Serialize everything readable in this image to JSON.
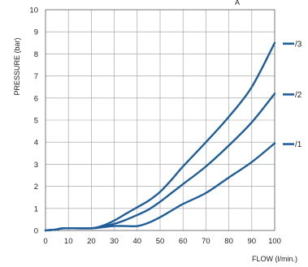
{
  "chart_data": {
    "type": "line",
    "title": "",
    "top_label": "A",
    "xlabel": "FLOW (l/min.)",
    "ylabel": "PRESSURE (bar)",
    "xlim": [
      0,
      100
    ],
    "ylim": [
      0,
      10
    ],
    "x_ticks": [
      "0",
      "10",
      "20",
      "30",
      "40",
      "50",
      "60",
      "70",
      "80",
      "90",
      "100"
    ],
    "y_ticks": [
      "0",
      "1",
      "2",
      "3",
      "4",
      "5",
      "6",
      "7",
      "8",
      "9",
      "10"
    ],
    "grid": true,
    "legend_position": "right",
    "line_color": "#1f5d99",
    "series": [
      {
        "name": "/3",
        "points": [
          [
            0,
            0
          ],
          [
            5,
            0.05
          ],
          [
            8,
            0.1
          ],
          [
            20,
            0.1
          ],
          [
            25,
            0.22
          ],
          [
            30,
            0.45
          ],
          [
            35,
            0.75
          ],
          [
            40,
            1.05
          ],
          [
            45,
            1.35
          ],
          [
            50,
            1.75
          ],
          [
            55,
            2.3
          ],
          [
            60,
            2.9
          ],
          [
            70,
            4.0
          ],
          [
            80,
            5.15
          ],
          [
            90,
            6.5
          ],
          [
            100,
            8.5
          ]
        ]
      },
      {
        "name": "/2",
        "points": [
          [
            0,
            0
          ],
          [
            5,
            0.05
          ],
          [
            8,
            0.1
          ],
          [
            20,
            0.1
          ],
          [
            25,
            0.18
          ],
          [
            30,
            0.3
          ],
          [
            35,
            0.48
          ],
          [
            40,
            0.7
          ],
          [
            45,
            0.95
          ],
          [
            50,
            1.3
          ],
          [
            55,
            1.7
          ],
          [
            60,
            2.1
          ],
          [
            70,
            2.9
          ],
          [
            80,
            3.85
          ],
          [
            90,
            4.9
          ],
          [
            100,
            6.2
          ]
        ]
      },
      {
        "name": "/1",
        "points": [
          [
            0,
            0
          ],
          [
            5,
            0.05
          ],
          [
            8,
            0.1
          ],
          [
            20,
            0.1
          ],
          [
            25,
            0.15
          ],
          [
            30,
            0.2
          ],
          [
            35,
            0.2
          ],
          [
            40,
            0.2
          ],
          [
            45,
            0.35
          ],
          [
            50,
            0.6
          ],
          [
            55,
            0.9
          ],
          [
            60,
            1.2
          ],
          [
            70,
            1.7
          ],
          [
            80,
            2.4
          ],
          [
            90,
            3.1
          ],
          [
            100,
            3.95
          ]
        ]
      }
    ]
  }
}
